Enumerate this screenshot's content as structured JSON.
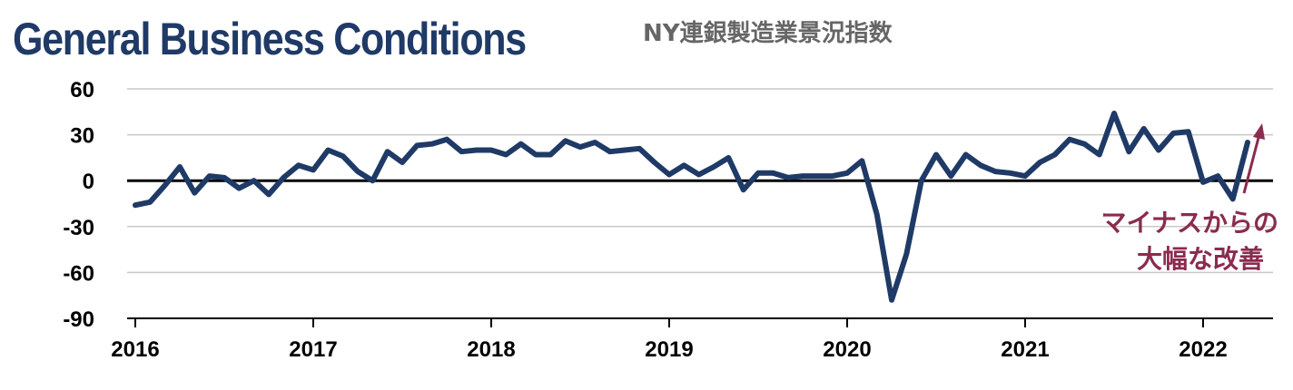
{
  "title": "General Business Conditions",
  "subtitle": "NY連銀製造業景況指数",
  "annotation": {
    "line1": "マイナスからの",
    "line2": "大幅な改善",
    "color": "#8b2b4e"
  },
  "colors": {
    "title": "#1f3a66",
    "series": "#1f3a66",
    "grid": "#c8c8c8",
    "zero": "#000000"
  },
  "chart_data": {
    "type": "line",
    "ylim": [
      -90,
      60
    ],
    "yticks": [
      60,
      30,
      0,
      -30,
      -60,
      -90
    ],
    "xticks": [
      "2016",
      "2017",
      "2018",
      "2019",
      "2020",
      "2021",
      "2022"
    ],
    "grid": "horizontal",
    "series": [
      {
        "values": [
          -16,
          -14,
          -3,
          9,
          -8,
          3,
          2,
          -5,
          0,
          -9,
          2,
          10,
          7,
          20,
          16,
          6,
          0,
          19,
          12,
          23,
          24,
          27,
          19,
          20,
          20,
          17,
          24,
          17,
          17,
          26,
          22,
          25,
          19,
          20,
          21,
          12,
          4,
          10,
          4,
          9,
          15,
          -6,
          5,
          5,
          2,
          3,
          3,
          3,
          5,
          13,
          -22,
          -78,
          -48,
          0,
          17,
          3,
          17,
          10,
          6,
          5,
          3,
          12,
          17,
          27,
          24,
          17,
          44,
          19,
          34,
          20,
          31,
          32,
          -1,
          3,
          -12,
          25
        ]
      }
    ],
    "x_start": "2016-01",
    "frequency": "monthly"
  }
}
